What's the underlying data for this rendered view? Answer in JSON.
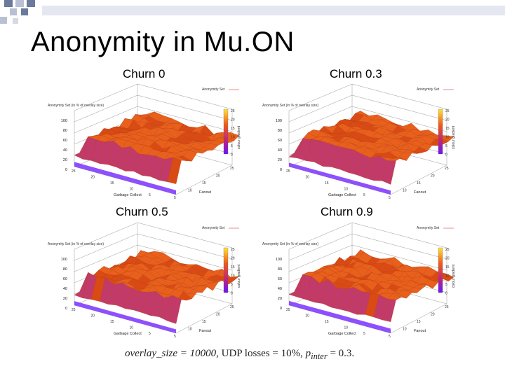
{
  "slide": {
    "title": "Anonymity in Mu.ON",
    "caption": {
      "lead": "overlay_size = 10000,",
      "udp": "UDP losses = 10%,",
      "pinter": "p",
      "pinter_sub": "inter",
      "tail": "= 0.3."
    }
  },
  "colors": {
    "deco_dark": "#6a7a9c",
    "deco_mid": "#b8c0d4",
    "deco_light": "#e4e7ef",
    "surface_top": "#e8601c",
    "surface_mid": "#d94a14",
    "surface_low": "#9b2fd9",
    "surface_floor": "#7a30ff"
  },
  "plots": [
    {
      "label": "Churn 0",
      "legend": "Anonymity Set",
      "zlabel": "Anonymity Set (in % of overlay size)",
      "z_ticks": [
        "100",
        "80",
        "60",
        "40",
        "20",
        "0"
      ],
      "colorbar_ticks": [
        "25",
        "20",
        "15",
        "10",
        "5",
        "0"
      ],
      "colorbar_label": "colour gradient",
      "x_axis": "Garbage Collect",
      "y_axis": "Fanout",
      "x_ticks": [
        "25",
        "20",
        "15",
        "10",
        "5"
      ],
      "y_ticks": [
        "5",
        "10",
        "15",
        "20",
        "25"
      ],
      "icon": "surface-plot"
    },
    {
      "label": "Churn 0.3",
      "legend": "Anonymity Set",
      "zlabel": "Anonymity Set (in % of overlay size)",
      "z_ticks": [
        "100",
        "80",
        "60",
        "40",
        "20",
        "0"
      ],
      "colorbar_ticks": [
        "25",
        "20",
        "15",
        "10",
        "5",
        "0"
      ],
      "colorbar_label": "colour gradient",
      "x_axis": "Garbage Collect",
      "y_axis": "Fanout",
      "x_ticks": [
        "25",
        "20",
        "15",
        "10",
        "5"
      ],
      "y_ticks": [
        "5",
        "10",
        "15",
        "20",
        "25"
      ],
      "icon": "surface-plot"
    },
    {
      "label": "Churn 0.5",
      "legend": "Anonymity Set",
      "zlabel": "Anonymity Set (in % of overlay size)",
      "z_ticks": [
        "100",
        "80",
        "60",
        "40",
        "20",
        "0"
      ],
      "colorbar_ticks": [
        "25",
        "20",
        "15",
        "10",
        "5",
        "0"
      ],
      "colorbar_label": "colour gradient",
      "x_axis": "Garbage Collect",
      "y_axis": "Fanout",
      "x_ticks": [
        "25",
        "20",
        "15",
        "10",
        "5"
      ],
      "y_ticks": [
        "5",
        "10",
        "15",
        "20",
        "25"
      ],
      "icon": "surface-plot"
    },
    {
      "label": "Churn 0.9",
      "legend": "Anonymity Set",
      "zlabel": "Anonymity Set (in % of overlay size)",
      "z_ticks": [
        "100",
        "80",
        "60",
        "40",
        "20",
        "0"
      ],
      "colorbar_ticks": [
        "25",
        "20",
        "15",
        "10",
        "5",
        "0"
      ],
      "colorbar_label": "colour gradient",
      "x_axis": "Garbage Collect",
      "y_axis": "Fanout",
      "x_ticks": [
        "25",
        "20",
        "15",
        "10",
        "5"
      ],
      "y_ticks": [
        "5",
        "10",
        "15",
        "20",
        "25"
      ],
      "icon": "surface-plot"
    }
  ]
}
